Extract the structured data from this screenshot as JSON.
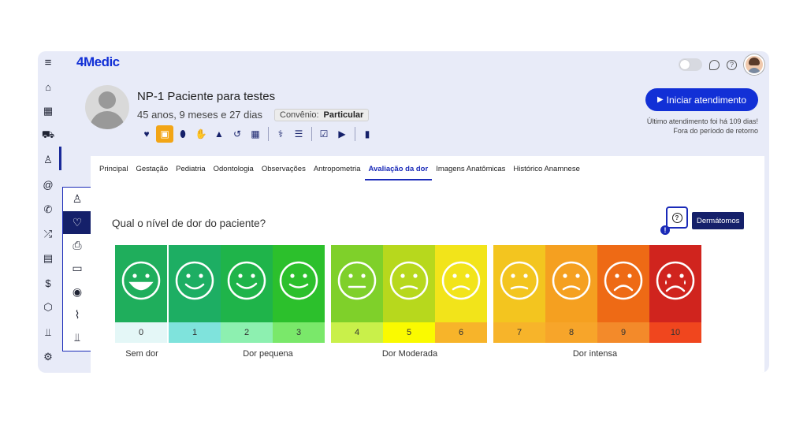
{
  "app": {
    "logo": "4Medic",
    "logo_mark": "'"
  },
  "header": {
    "toggle_icon": "toggle-switch",
    "chat_icon": "chat-icon",
    "help_icon": "help-icon",
    "help_symbol": "?"
  },
  "rail": {
    "items": [
      "menu-icon",
      "home-icon",
      "calendar-icon",
      "car-icon",
      "user-icon",
      "at-icon",
      "phone-icon",
      "shuffle-icon",
      "clipboard-icon",
      "dollar-icon",
      "cube-icon",
      "chart-icon",
      "settings-icon"
    ],
    "menu": "≡",
    "home": "⌂",
    "calendar": "▦",
    "car": "⛟",
    "user": "♙",
    "at": "@",
    "phone": "✆",
    "shuffle": "⤮",
    "clipboard": "▤",
    "dollar": "$",
    "cube": "⬡",
    "chart": "⫫",
    "gear": "⚙"
  },
  "subpanel": {
    "user": "♙",
    "heart": "♡",
    "print": "⎙",
    "folder": "▭",
    "camera": "◉",
    "clip": "⌇",
    "chart": "⫫"
  },
  "patient": {
    "name": "NP-1 Paciente para testes",
    "age": "45 anos, 9 meses e 27 dias",
    "convenio_label": "Convênio:",
    "convenio_value": "Particular"
  },
  "toolbar": {
    "icons": [
      "heart-icon",
      "clipboard-icon",
      "pill-icon",
      "hand-icon",
      "warning-icon",
      "history-icon",
      "table-icon",
      "stethoscope-icon",
      "list-icon",
      "calendar-check-icon",
      "video-icon",
      "book-icon"
    ],
    "glyphs": [
      "♥",
      "▣",
      "⬮",
      "✋",
      "▲",
      "↺",
      "▦",
      "⚕",
      "☰",
      "☑",
      "▶",
      "▮"
    ]
  },
  "actions": {
    "iniciar_label": "Iniciar atendimento",
    "play_glyph": "▶",
    "ultimo_line1": "Último atendimento foi há 109 dias!",
    "ultimo_line2": "Fora do período de retorno"
  },
  "tabs": [
    "Principal",
    "Gestação",
    "Pediatria",
    "Odontologia",
    "Observações",
    "Antropometria",
    "Avaliação da dor",
    "Imagens Anatômicas",
    "Histórico Anamnese"
  ],
  "active_tab": "Avaliação da dor",
  "pain": {
    "question": "Qual o nível de dor do paciente?",
    "help_symbol": "?",
    "alert_symbol": "!",
    "dermatomos_label": "Dermátomos",
    "levels": [
      {
        "n": "0",
        "face": "#1fae5c",
        "num_bg": "#e4f7f7"
      },
      {
        "n": "1",
        "face": "#1dae63",
        "num_bg": "#7fe3dc"
      },
      {
        "n": "2",
        "face": "#1fb44a",
        "num_bg": "#8df0b0"
      },
      {
        "n": "3",
        "face": "#2cc02c",
        "num_bg": "#7ae86a"
      },
      {
        "n": "4",
        "face": "#7fd02a",
        "num_bg": "#c9f04a"
      },
      {
        "n": "5",
        "face": "#b7d81d",
        "num_bg": "#fafa00"
      },
      {
        "n": "6",
        "face": "#f2e41a",
        "num_bg": "#f7b42a"
      },
      {
        "n": "7",
        "face": "#f3c51f",
        "num_bg": "#f7b42a"
      },
      {
        "n": "8",
        "face": "#f5a020",
        "num_bg": "#f7a52a"
      },
      {
        "n": "9",
        "face": "#ee6a15",
        "num_bg": "#f38a2a"
      },
      {
        "n": "10",
        "face": "#d0241e",
        "num_bg": "#f0461e"
      }
    ],
    "categories": [
      "Sem dor",
      "Dor pequena",
      "Dor Moderada",
      "Dor intensa"
    ]
  }
}
